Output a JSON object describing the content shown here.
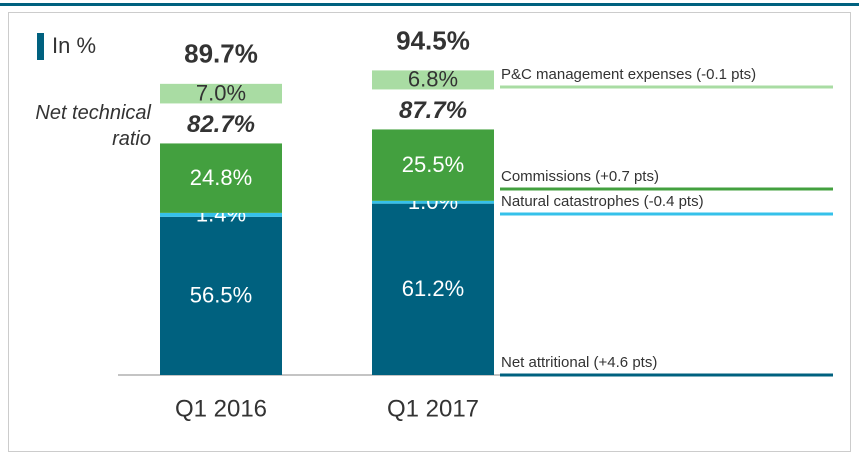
{
  "chart_data": {
    "type": "stacked_bar",
    "unit_note": "In %",
    "side_label": "Net technical ratio",
    "categories": [
      "Q1 2016",
      "Q1 2017"
    ],
    "series": [
      {
        "name": "Net attritional (+4.6 pts)",
        "color": "#00617f",
        "values": [
          56.5,
          61.2
        ],
        "value_labels": [
          "56.5%",
          "61.2%"
        ]
      },
      {
        "name": "Natural catastrophes (-0.4 pts)",
        "color": "#35c1ea",
        "values": [
          1.4,
          1.0
        ],
        "value_labels": [
          "1.4%",
          "1.0%"
        ]
      },
      {
        "name": "Commissions (+0.7 pts)",
        "color": "#43a03f",
        "values": [
          24.8,
          25.5
        ],
        "value_labels": [
          "24.8%",
          "25.5%"
        ]
      },
      {
        "name": "P&C management expenses (-0.1 pts)",
        "color": "#a9dca3",
        "values": [
          7.0,
          6.8
        ],
        "value_labels": [
          "7.0%",
          "6.8%"
        ]
      }
    ],
    "subtotals": {
      "values": [
        82.7,
        87.7
      ],
      "value_labels": [
        "82.7%",
        "87.7%"
      ]
    },
    "totals": {
      "values": [
        89.7,
        94.5
      ],
      "value_labels": [
        "89.7%",
        "94.5%"
      ]
    }
  }
}
